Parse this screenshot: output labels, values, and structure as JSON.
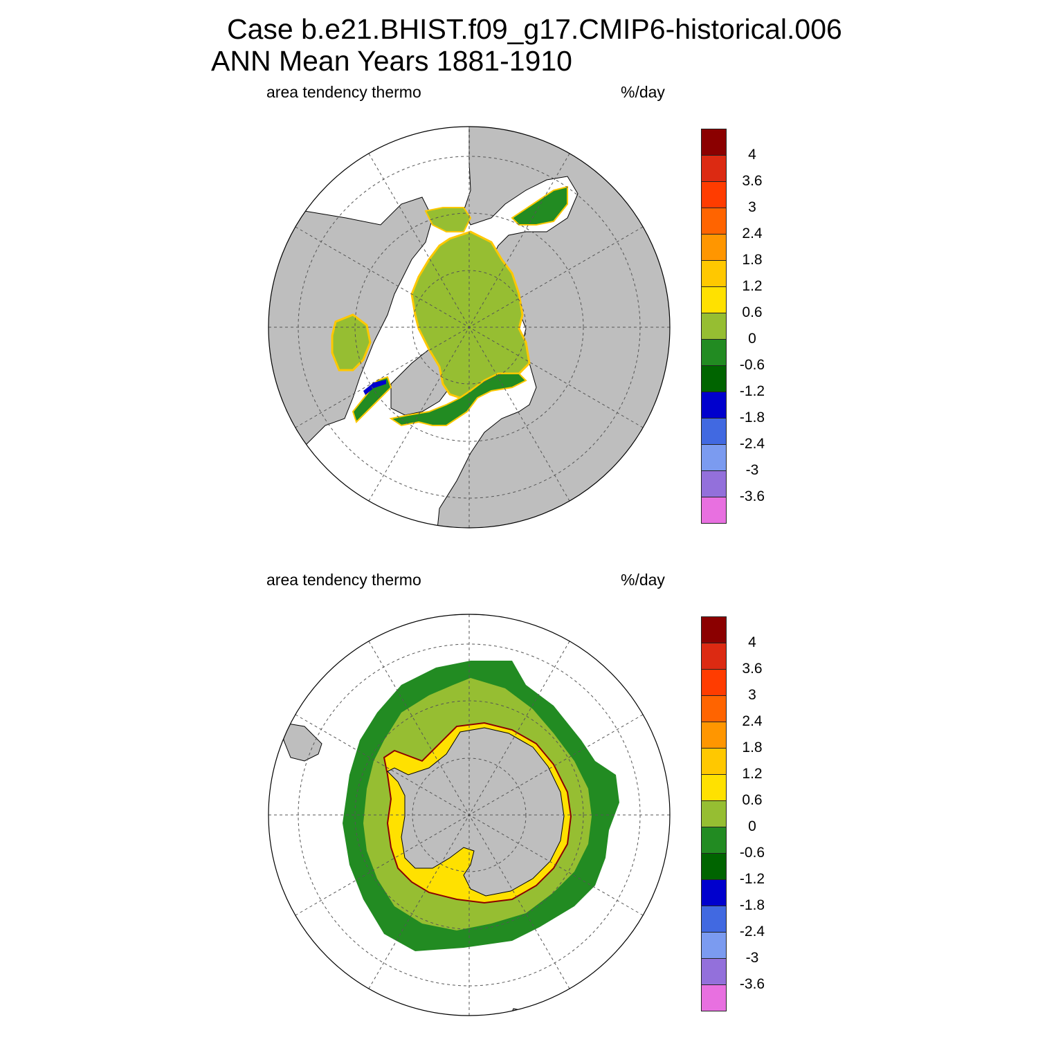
{
  "title": {
    "line1": "Case b.e21.BHIST.f09_g17.CMIP6-historical.006",
    "line2": "ANN Mean    Years 1881-1910"
  },
  "panels": [
    {
      "id": "north",
      "hemisphere": "Northern Hemisphere",
      "variable_label": "area tendency thermo",
      "units_label": "%/day"
    },
    {
      "id": "south",
      "hemisphere": "Southern Hemisphere",
      "variable_label": "area tendency thermo",
      "units_label": "%/day"
    }
  ],
  "colorbar": {
    "colors": [
      "#8B0000",
      "#DC2A12",
      "#FF3C00",
      "#FF6400",
      "#FF9600",
      "#FFC800",
      "#FFE100",
      "#96BE32",
      "#228B22",
      "#006400",
      "#0000CD",
      "#4169E1",
      "#7B9BF0",
      "#9370DB",
      "#E870E0"
    ],
    "tick_labels": [
      "4",
      "3.6",
      "3",
      "2.4",
      "1.8",
      "1.2",
      "0.6",
      "0",
      "-0.6",
      "-1.2",
      "-1.8",
      "-2.4",
      "-3",
      "-3.6"
    ]
  },
  "map_colors": {
    "land": "#BEBEBE",
    "ocean_no_ice": "#FFFFFF",
    "graticule": "#555555"
  }
}
